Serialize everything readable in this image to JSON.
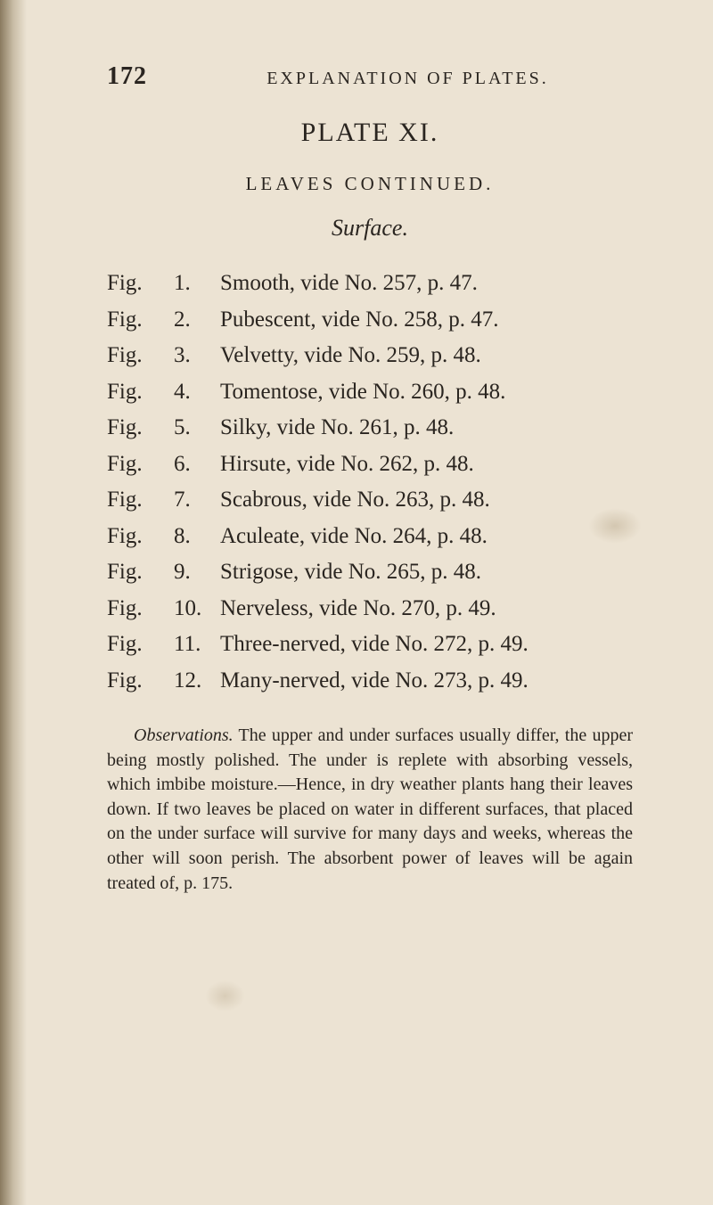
{
  "page_number": "172",
  "running_head": "EXPLANATION OF PLATES.",
  "plate_title": "PLATE XI.",
  "section_title": "LEAVES CONTINUED.",
  "subsection_title": "Surface.",
  "figures": [
    {
      "label": "Fig.",
      "num": "1.",
      "text": "Smooth, vide No. 257, p. 47."
    },
    {
      "label": "Fig.",
      "num": "2.",
      "text": "Pubescent, vide No. 258, p. 47."
    },
    {
      "label": "Fig.",
      "num": "3.",
      "text": "Velvetty, vide No. 259, p. 48."
    },
    {
      "label": "Fig.",
      "num": "4.",
      "text": "Tomentose, vide No. 260, p. 48."
    },
    {
      "label": "Fig.",
      "num": "5.",
      "text": "Silky, vide No. 261, p. 48."
    },
    {
      "label": "Fig.",
      "num": "6.",
      "text": "Hirsute, vide No. 262, p. 48."
    },
    {
      "label": "Fig.",
      "num": "7.",
      "text": "Scabrous, vide No. 263, p. 48."
    },
    {
      "label": "Fig.",
      "num": "8.",
      "text": "Aculeate, vide No. 264, p. 48."
    },
    {
      "label": "Fig.",
      "num": "9.",
      "text": "Strigose, vide No. 265, p. 48."
    },
    {
      "label": "Fig.",
      "num": "10.",
      "text": "Nerveless, vide No. 270, p. 49."
    },
    {
      "label": "Fig.",
      "num": "11.",
      "text": "Three-nerved, vide No. 272, p. 49."
    },
    {
      "label": "Fig.",
      "num": "12.",
      "text": "Many-nerved, vide No. 273, p. 49."
    }
  ],
  "observations": {
    "label": "Observations.",
    "text": " The upper and under surfaces usually differ, the upper being mostly polished. The under is replete with absorbing vessels, which imbibe moisture.—Hence, in dry weather plants hang their leaves down. If two leaves be placed on water in different surfaces, that placed on the under surface will survive for many days and weeks, whereas the other will soon perish. The absorbent power of leaves will be again treated of, p. 175."
  },
  "colors": {
    "paper": "#ece3d3",
    "ink": "#2a2520",
    "shadow": "#8a7a5f"
  },
  "typography": {
    "body_fontsize": 25,
    "obs_fontsize": 20,
    "title_fontsize": 30,
    "head_fontsize": 20,
    "pagenum_fontsize": 28
  }
}
